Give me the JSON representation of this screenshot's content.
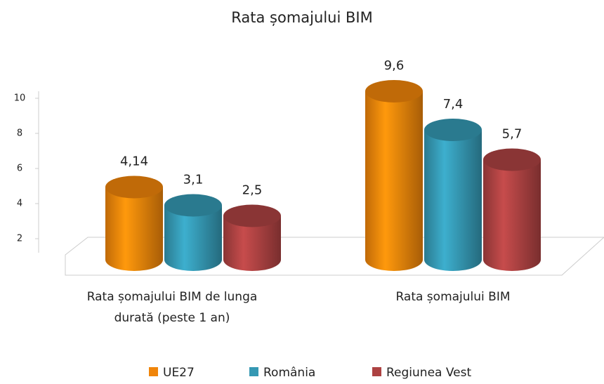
{
  "chart_data": {
    "type": "bar",
    "title": "Rata șomajului BIM",
    "categories": [
      "Rata șomajului BIM de lunga durată (peste 1 an)",
      "Rata șomajului BIM"
    ],
    "series": [
      {
        "name": "UE27",
        "color": "#f0850a",
        "values": [
          4.14,
          9.6
        ],
        "value_labels": [
          "4,14",
          "9,6"
        ]
      },
      {
        "name": "România",
        "color": "#3598b3",
        "values": [
          3.1,
          7.4
        ],
        "value_labels": [
          "3,1",
          "7,4"
        ]
      },
      {
        "name": "Regiunea Vest",
        "color": "#ad4242",
        "values": [
          2.5,
          5.7
        ],
        "value_labels": [
          "2,5",
          "5,7"
        ]
      }
    ],
    "ylim": [
      0,
      10
    ],
    "yticks": [
      2,
      4,
      6,
      8,
      10
    ],
    "legend": "bottom"
  }
}
